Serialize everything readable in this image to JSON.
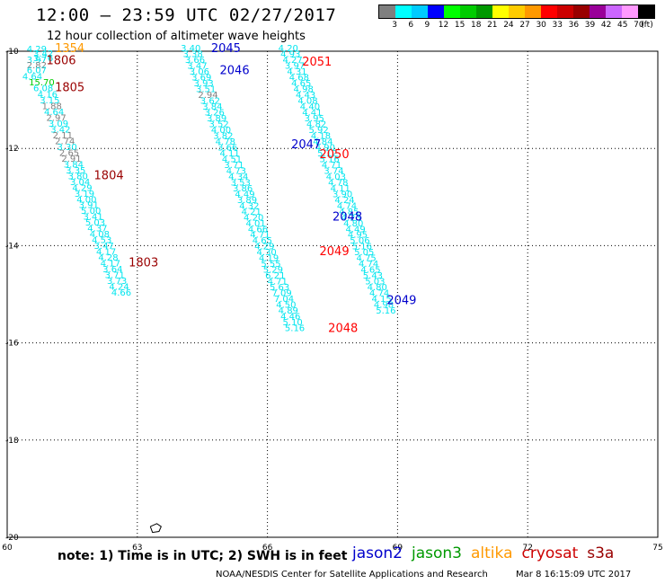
{
  "header": {
    "title": "12:00 – 23:59 UTC 02/27/2017",
    "subtitle": "12 hour collection of altimeter wave heights"
  },
  "legend": {
    "colors": [
      "#7f7f7f",
      "#00ffff",
      "#00ccff",
      "#0000ff",
      "#00ff00",
      "#00cc00",
      "#009900",
      "#ffff00",
      "#ffcc00",
      "#ff9900",
      "#ff0000",
      "#cc0000",
      "#990000",
      "#990099",
      "#cc66ff",
      "#ff99ff",
      "#000000"
    ],
    "labels": [
      "3",
      "6",
      "9",
      "12",
      "15",
      "18",
      "21",
      "24",
      "27",
      "30",
      "33",
      "36",
      "39",
      "42",
      "45",
      "70",
      "(ft)"
    ]
  },
  "note": "note: 1) Time is in UTC; 2) SWH is in feet",
  "satellites": [
    {
      "name": "jason2",
      "color": "#0000cc"
    },
    {
      "name": "jason3",
      "color": "#009900"
    },
    {
      "name": "altika",
      "color": "#ff9900"
    },
    {
      "name": "cryosat",
      "color": "#cc0000"
    },
    {
      "name": "s3a",
      "color": "#990000"
    }
  ],
  "footer": {
    "source": "NOAA/NESDIS Center for Satellite Applications and Research",
    "generated": "Mar  8 16:15:09 UTC 2017"
  },
  "chart_data": {
    "type": "scatter",
    "xlim": [
      60,
      75
    ],
    "ylim": [
      -20,
      -10
    ],
    "x_ticks": [
      60,
      63,
      66,
      69,
      72,
      75
    ],
    "y_ticks": [
      -10,
      -12,
      -14,
      -16,
      -18,
      -20
    ],
    "grid": true,
    "series": [
      {
        "name": "track-west",
        "points": [
          [
            60.45,
            -10.02,
            "4.29",
            "#00e5ee"
          ],
          [
            60.6,
            -10.11,
            "3.42",
            "#00e5ee"
          ],
          [
            60.6,
            -10.2,
            "3.76",
            "#00e5ee"
          ],
          [
            60.45,
            -10.24,
            "3.97",
            "#00e5ee"
          ],
          [
            60.45,
            -10.35,
            "2.82",
            "#7f7f7f"
          ],
          [
            60.45,
            -10.45,
            "6.07",
            "#00e5ee"
          ],
          [
            60.35,
            -10.58,
            "4.64",
            "#00e5ee"
          ],
          [
            60.5,
            -10.7,
            "15.70",
            "#00cc00"
          ],
          [
            60.6,
            -10.82,
            "6.08",
            "#00e5ee"
          ],
          [
            60.7,
            -10.95,
            "4.16",
            "#00e5ee"
          ],
          [
            60.75,
            -11.07,
            "3.15",
            "#00e5ee"
          ],
          [
            60.8,
            -11.19,
            "1.88",
            "#7f7f7f"
          ],
          [
            60.85,
            -11.31,
            "4.64",
            "#00e5ee"
          ],
          [
            60.9,
            -11.43,
            "2.97",
            "#7f7f7f"
          ],
          [
            60.95,
            -11.55,
            "3.09",
            "#00e5ee"
          ],
          [
            61.0,
            -11.67,
            "3.42",
            "#00e5ee"
          ],
          [
            61.05,
            -11.79,
            "2.11",
            "#7f7f7f"
          ],
          [
            61.1,
            -11.91,
            "2.74",
            "#7f7f7f"
          ],
          [
            61.15,
            -12.03,
            "3.30",
            "#00e5ee"
          ],
          [
            61.2,
            -12.15,
            "2.65",
            "#7f7f7f"
          ],
          [
            61.25,
            -12.27,
            "2.91",
            "#7f7f7f"
          ],
          [
            61.3,
            -12.39,
            "3.84",
            "#00e5ee"
          ],
          [
            61.35,
            -12.51,
            "3.35",
            "#00e5ee"
          ],
          [
            61.4,
            -12.63,
            "3.80",
            "#00e5ee"
          ],
          [
            61.45,
            -12.75,
            "3.04",
            "#00e5ee"
          ],
          [
            61.5,
            -12.87,
            "4.29",
            "#00e5ee"
          ],
          [
            61.55,
            -12.99,
            "3.19",
            "#00e5ee"
          ],
          [
            61.6,
            -13.11,
            "4.00",
            "#00e5ee"
          ],
          [
            61.65,
            -13.23,
            "3.91",
            "#00e5ee"
          ],
          [
            61.7,
            -13.35,
            "5.00",
            "#00e5ee"
          ],
          [
            61.75,
            -13.47,
            "3.41",
            "#00e5ee"
          ],
          [
            61.8,
            -13.59,
            "5.03",
            "#00e5ee"
          ],
          [
            61.85,
            -13.71,
            "4.37",
            "#00e5ee"
          ],
          [
            61.9,
            -13.83,
            "4.08",
            "#00e5ee"
          ],
          [
            61.95,
            -13.95,
            "4.53",
            "#00e5ee"
          ],
          [
            62.0,
            -14.07,
            "3.47",
            "#00e5ee"
          ],
          [
            62.05,
            -14.19,
            "4.17",
            "#00e5ee"
          ],
          [
            62.1,
            -14.31,
            "4.28",
            "#00e5ee"
          ],
          [
            62.15,
            -14.43,
            "4.17",
            "#00e5ee"
          ],
          [
            62.2,
            -14.55,
            "3.64",
            "#00e5ee"
          ],
          [
            62.25,
            -14.67,
            "3.71",
            "#00e5ee"
          ],
          [
            62.3,
            -14.79,
            "3.73",
            "#00e5ee"
          ],
          [
            62.35,
            -14.91,
            "4.24",
            "#00e5ee"
          ],
          [
            62.4,
            -15.03,
            "4.66",
            "#00e5ee"
          ]
        ]
      },
      {
        "name": "track-middle",
        "points": [
          [
            64.0,
            -10.0,
            "3.40",
            "#00e5ee"
          ],
          [
            64.05,
            -10.12,
            "3.38",
            "#00e5ee"
          ],
          [
            64.1,
            -10.24,
            "3.66",
            "#00e5ee"
          ],
          [
            64.15,
            -10.36,
            "3.47",
            "#00e5ee"
          ],
          [
            64.2,
            -10.48,
            "3.06",
            "#00e5ee"
          ],
          [
            64.25,
            -10.6,
            "3.69",
            "#00e5ee"
          ],
          [
            64.3,
            -10.72,
            "3.93",
            "#00e5ee"
          ],
          [
            64.35,
            -10.84,
            "3.51",
            "#00e5ee"
          ],
          [
            64.4,
            -10.96,
            "2.94",
            "#7f7f7f"
          ],
          [
            64.45,
            -11.08,
            "3.62",
            "#00e5ee"
          ],
          [
            64.5,
            -11.2,
            "3.84",
            "#00e5ee"
          ],
          [
            64.55,
            -11.32,
            "3.26",
            "#00e5ee"
          ],
          [
            64.6,
            -11.44,
            "3.89",
            "#00e5ee"
          ],
          [
            64.65,
            -11.56,
            "3.52",
            "#00e5ee"
          ],
          [
            64.7,
            -11.68,
            "4.00",
            "#00e5ee"
          ],
          [
            64.75,
            -11.8,
            "3.82",
            "#00e5ee"
          ],
          [
            64.8,
            -11.92,
            "4.78",
            "#00e5ee"
          ],
          [
            64.85,
            -12.04,
            "3.66",
            "#00e5ee"
          ],
          [
            64.9,
            -12.16,
            "4.11",
            "#00e5ee"
          ],
          [
            64.95,
            -12.28,
            "4.51",
            "#00e5ee"
          ],
          [
            65.0,
            -12.4,
            "3.71",
            "#00e5ee"
          ],
          [
            65.05,
            -12.52,
            "4.73",
            "#00e5ee"
          ],
          [
            65.1,
            -12.64,
            "4.34",
            "#00e5ee"
          ],
          [
            65.15,
            -12.76,
            "3.53",
            "#00e5ee"
          ],
          [
            65.2,
            -12.88,
            "3.86",
            "#00e5ee"
          ],
          [
            65.25,
            -13.0,
            "4.49",
            "#00e5ee"
          ],
          [
            65.3,
            -13.12,
            "3.89",
            "#00e5ee"
          ],
          [
            65.35,
            -13.24,
            "4.32",
            "#00e5ee"
          ],
          [
            65.4,
            -13.36,
            "4.21",
            "#00e5ee"
          ],
          [
            65.45,
            -13.48,
            "4.20",
            "#00e5ee"
          ],
          [
            65.5,
            -13.6,
            "4.01",
            "#00e5ee"
          ],
          [
            65.55,
            -13.72,
            "4.66",
            "#00e5ee"
          ],
          [
            65.6,
            -13.84,
            "4.71",
            "#00e5ee"
          ],
          [
            65.65,
            -13.96,
            "4.65",
            "#00e5ee"
          ],
          [
            65.7,
            -14.08,
            "4.29",
            "#00e5ee"
          ],
          [
            65.75,
            -14.2,
            "4.30",
            "#00e5ee"
          ],
          [
            65.8,
            -14.32,
            "4.19",
            "#00e5ee"
          ],
          [
            65.85,
            -14.44,
            "5.55",
            "#00e5ee"
          ],
          [
            65.9,
            -14.56,
            "5.29",
            "#00e5ee"
          ],
          [
            65.95,
            -14.68,
            "6.21",
            "#00e5ee"
          ],
          [
            66.0,
            -14.8,
            "4.71",
            "#00e5ee"
          ],
          [
            66.05,
            -14.92,
            "5.63",
            "#00e5ee"
          ],
          [
            66.1,
            -15.04,
            "7.09",
            "#00e5ee"
          ],
          [
            66.15,
            -15.16,
            "7.04",
            "#00e5ee"
          ],
          [
            66.2,
            -15.28,
            "4.50",
            "#00e5ee"
          ],
          [
            66.25,
            -15.4,
            "4.89",
            "#00e5ee"
          ],
          [
            66.3,
            -15.52,
            "4.46",
            "#00e5ee"
          ],
          [
            66.35,
            -15.64,
            "5.10",
            "#00e5ee"
          ],
          [
            66.4,
            -15.76,
            "5.16",
            "#00e5ee"
          ]
        ]
      },
      {
        "name": "track-east",
        "points": [
          [
            66.25,
            -10.0,
            "4.20",
            "#00e5ee"
          ],
          [
            66.3,
            -10.12,
            "4.93",
            "#00e5ee"
          ],
          [
            66.35,
            -10.24,
            "4.27",
            "#00e5ee"
          ],
          [
            66.4,
            -10.36,
            "3.97",
            "#00e5ee"
          ],
          [
            66.45,
            -10.48,
            "4.31",
            "#00e5ee"
          ],
          [
            66.5,
            -10.6,
            "4.68",
            "#00e5ee"
          ],
          [
            66.55,
            -10.72,
            "4.65",
            "#00e5ee"
          ],
          [
            66.6,
            -10.84,
            "4.98",
            "#00e5ee"
          ],
          [
            66.65,
            -10.96,
            "4.43",
            "#00e5ee"
          ],
          [
            66.7,
            -11.08,
            "4.08",
            "#00e5ee"
          ],
          [
            66.75,
            -11.2,
            "4.40",
            "#00e5ee"
          ],
          [
            66.8,
            -11.32,
            "4.41",
            "#00e5ee"
          ],
          [
            66.85,
            -11.44,
            "3.95",
            "#00e5ee"
          ],
          [
            66.9,
            -11.56,
            "4.82",
            "#00e5ee"
          ],
          [
            66.95,
            -11.68,
            "5.92",
            "#00e5ee"
          ],
          [
            67.0,
            -11.8,
            "4.18",
            "#00e5ee"
          ],
          [
            67.05,
            -11.92,
            "4.84",
            "#00e5ee"
          ],
          [
            67.1,
            -12.04,
            "4.90",
            "#00e5ee"
          ],
          [
            67.15,
            -12.16,
            "5.12",
            "#00e5ee"
          ],
          [
            67.2,
            -12.28,
            "5.16",
            "#00e5ee"
          ],
          [
            67.25,
            -12.4,
            "4.71",
            "#00e5ee"
          ],
          [
            67.3,
            -12.52,
            "3.74",
            "#00e5ee"
          ],
          [
            67.35,
            -12.64,
            "4.03",
            "#00e5ee"
          ],
          [
            67.4,
            -12.76,
            "4.78",
            "#00e5ee"
          ],
          [
            67.45,
            -12.88,
            "4.11",
            "#00e5ee"
          ],
          [
            67.5,
            -13.0,
            "3.90",
            "#00e5ee"
          ],
          [
            67.55,
            -13.12,
            "4.24",
            "#00e5ee"
          ],
          [
            67.6,
            -13.24,
            "4.74",
            "#00e5ee"
          ],
          [
            67.65,
            -13.36,
            "4.85",
            "#00e5ee"
          ],
          [
            67.7,
            -13.48,
            "4.23",
            "#00e5ee"
          ],
          [
            67.75,
            -13.6,
            "4.80",
            "#00e5ee"
          ],
          [
            67.8,
            -13.72,
            "4.49",
            "#00e5ee"
          ],
          [
            67.85,
            -13.84,
            "4.95",
            "#00e5ee"
          ],
          [
            67.9,
            -13.96,
            "5.06",
            "#00e5ee"
          ],
          [
            67.95,
            -14.08,
            "5.16",
            "#00e5ee"
          ],
          [
            68.0,
            -14.2,
            "5.05",
            "#00e5ee"
          ],
          [
            68.05,
            -14.32,
            "4.75",
            "#00e5ee"
          ],
          [
            68.1,
            -14.44,
            "4.74",
            "#00e5ee"
          ],
          [
            68.15,
            -14.56,
            "4.65",
            "#00e5ee"
          ],
          [
            68.2,
            -14.68,
            "5.43",
            "#00e5ee"
          ],
          [
            68.25,
            -14.8,
            "5.03",
            "#00e5ee"
          ],
          [
            68.3,
            -14.92,
            "4.80",
            "#00e5ee"
          ],
          [
            68.35,
            -15.04,
            "4.74",
            "#00e5ee"
          ],
          [
            68.4,
            -15.16,
            "4.15",
            "#00e5ee"
          ],
          [
            68.45,
            -15.28,
            "4.98",
            "#00e5ee"
          ],
          [
            68.5,
            -15.4,
            "5.16",
            "#00e5ee"
          ]
        ]
      }
    ],
    "pass_labels": [
      {
        "x": 61.1,
        "y": -10.02,
        "text": "1354",
        "color": "#ff9900"
      },
      {
        "x": 60.9,
        "y": -10.27,
        "text": "1806",
        "color": "#990000"
      },
      {
        "x": 61.1,
        "y": -10.82,
        "text": "1805",
        "color": "#990000"
      },
      {
        "x": 62.0,
        "y": -12.63,
        "text": "1804",
        "color": "#990000"
      },
      {
        "x": 62.8,
        "y": -14.43,
        "text": "1803",
        "color": "#990000"
      },
      {
        "x": 64.7,
        "y": -10.02,
        "text": "2045",
        "color": "#0000cc"
      },
      {
        "x": 64.9,
        "y": -10.47,
        "text": "2046",
        "color": "#0000cc"
      },
      {
        "x": 66.55,
        "y": -12.0,
        "text": "2047",
        "color": "#0000cc"
      },
      {
        "x": 67.5,
        "y": -13.48,
        "text": "2048",
        "color": "#0000cc"
      },
      {
        "x": 68.75,
        "y": -15.2,
        "text": "2049",
        "color": "#0000cc"
      },
      {
        "x": 66.8,
        "y": -10.3,
        "text": "2051",
        "color": "#ff0000"
      },
      {
        "x": 67.2,
        "y": -12.2,
        "text": "2050",
        "color": "#ff0000"
      },
      {
        "x": 67.2,
        "y": -14.2,
        "text": "2049",
        "color": "#ff0000"
      },
      {
        "x": 67.4,
        "y": -15.78,
        "text": "2048",
        "color": "#ff0000"
      }
    ],
    "coastline": [
      [
        63.3,
        -19.78
      ],
      [
        63.45,
        -19.72
      ],
      [
        63.55,
        -19.78
      ],
      [
        63.5,
        -19.88
      ],
      [
        63.35,
        -19.9
      ],
      [
        63.3,
        -19.78
      ]
    ]
  }
}
